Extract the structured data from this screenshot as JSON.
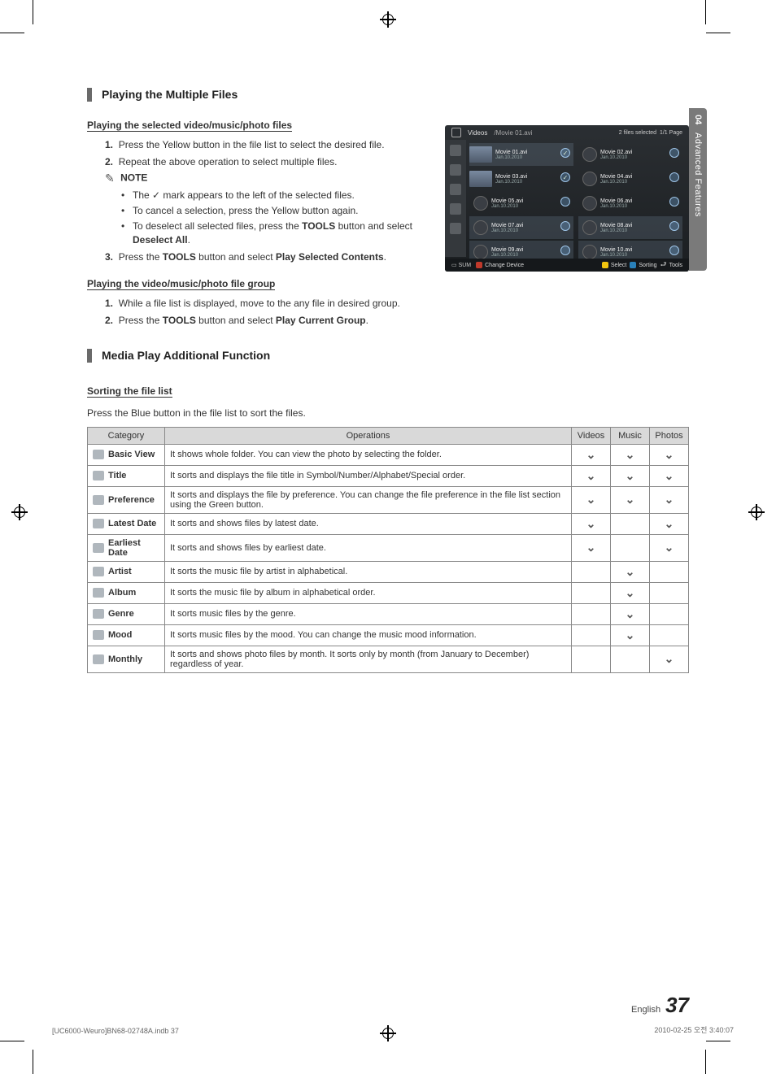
{
  "sidetab": {
    "num": "04",
    "label": "Advanced Features"
  },
  "section1": {
    "title": "Playing the Multiple Files",
    "sub1": "Playing the selected video/music/photo files",
    "step1": "Press the Yellow button in the file list to select the desired file.",
    "step2": "Repeat the above operation to select multiple files.",
    "note_label": "NOTE",
    "n1a": "The ",
    "n1b": " mark appears to the left of the selected files.",
    "n2": "To cancel a selection, press the Yellow button again.",
    "n3a": "To deselect all selected files, press the ",
    "n3b": " button and select ",
    "n3_tools": "TOOLS",
    "n3_desel": "Deselect All",
    "step3a": "Press the ",
    "step3_tools": "TOOLS",
    "step3b": " button and select ",
    "step3_play": "Play Selected Contents",
    "sub2": "Playing the video/music/photo file group",
    "g1": "While a file list is displayed, move to the any file in desired group.",
    "g2a": "Press the ",
    "g2_tools": "TOOLS",
    "g2b": " button and select ",
    "g2_play": "Play Current Group"
  },
  "section2": {
    "title": "Media Play Additional Function",
    "sub": "Sorting the file list",
    "desc": "Press the Blue button in the file list to sort the files."
  },
  "screenshot": {
    "title": "Videos",
    "path": "/Movie 01.avi",
    "selected": "2 files selected",
    "page": "1/1 Page",
    "sum": "SUM",
    "chg": "Change Device",
    "btn_a": "A",
    "btn_c_lbl": "Select",
    "btn_c": "C",
    "btn_d_lbl": "Sorting",
    "btn_d": "D",
    "tools": "Tools",
    "items": [
      {
        "name": "Movie 01.avi",
        "date": "Jan.10.2010",
        "thumb": true,
        "checked": true,
        "hl": true
      },
      {
        "name": "Movie 02.avi",
        "date": "Jan.10.2010",
        "thumb": false,
        "checked": false,
        "hl": false
      },
      {
        "name": "Movie 03.avi",
        "date": "Jan.10.2010",
        "thumb": true,
        "checked": true,
        "hl": false
      },
      {
        "name": "Movie 04.avi",
        "date": "Jan.10.2010",
        "thumb": false,
        "checked": false,
        "hl": false
      },
      {
        "name": "Movie 05.avi",
        "date": "Jan.10.2010",
        "thumb": false,
        "checked": false,
        "hl": false
      },
      {
        "name": "Movie 06.avi",
        "date": "Jan.10.2010",
        "thumb": false,
        "checked": false,
        "hl": false
      },
      {
        "name": "Movie 07.avi",
        "date": "Jan.10.2010",
        "thumb": false,
        "checked": false,
        "hl": true
      },
      {
        "name": "Movie 08.avi",
        "date": "Jan.10.2010",
        "thumb": false,
        "checked": false,
        "hl": true
      },
      {
        "name": "Movie 09.avi",
        "date": "Jan.10.2010",
        "thumb": false,
        "checked": false,
        "hl": true
      },
      {
        "name": "Movie 10.avi",
        "date": "Jan.10.2010",
        "thumb": false,
        "checked": false,
        "hl": true
      }
    ]
  },
  "table": {
    "headers": {
      "cat": "Category",
      "op": "Operations",
      "vid": "Videos",
      "mus": "Music",
      "pho": "Photos"
    },
    "rows": [
      {
        "cat": "Basic View",
        "op": "It shows whole folder. You can view the photo by selecting the folder.",
        "v": true,
        "m": true,
        "p": true
      },
      {
        "cat": "Title",
        "op": "It sorts and displays the file title in Symbol/Number/Alphabet/Special order.",
        "v": true,
        "m": true,
        "p": true
      },
      {
        "cat": "Preference",
        "op": "It sorts and displays the file by preference. You can change the file preference in the file list section using the Green button.",
        "v": true,
        "m": true,
        "p": true
      },
      {
        "cat": "Latest Date",
        "op": "It sorts and shows files by latest date.",
        "v": true,
        "m": false,
        "p": true
      },
      {
        "cat": "Earliest Date",
        "op": "It sorts and shows files by earliest date.",
        "v": true,
        "m": false,
        "p": true
      },
      {
        "cat": "Artist",
        "op": "It sorts the music file by artist in alphabetical.",
        "v": false,
        "m": true,
        "p": false
      },
      {
        "cat": "Album",
        "op": "It sorts the music file by album in alphabetical order.",
        "v": false,
        "m": true,
        "p": false
      },
      {
        "cat": "Genre",
        "op": "It sorts music files by the genre.",
        "v": false,
        "m": true,
        "p": false
      },
      {
        "cat": "Mood",
        "op": "It sorts music files by the mood. You can change the music mood information.",
        "v": false,
        "m": true,
        "p": false
      },
      {
        "cat": "Monthly",
        "op": "It sorts and shows photo files by month. It sorts only by month (from January to December) regardless of year.",
        "v": false,
        "m": false,
        "p": true
      }
    ]
  },
  "footer": {
    "eng": "English",
    "page": "37"
  },
  "imprint": {
    "left": "[UC6000-Weuro]BN68-02748A.indb   37",
    "right": "2010-02-25   오전 3:40:07"
  }
}
